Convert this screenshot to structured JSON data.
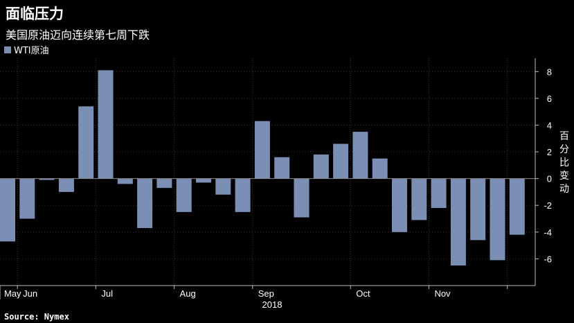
{
  "header": {
    "title": "面临压力",
    "subtitle": "美国原油迈向连续第七周下跌"
  },
  "footer": {
    "source": "Source: Nymex"
  },
  "chart_data": {
    "type": "bar",
    "series": [
      {
        "name": "WTI原油",
        "color": "#7b8fb5",
        "values": [
          -4.7,
          -3.0,
          -0.1,
          -1.0,
          5.4,
          8.1,
          -0.4,
          -3.7,
          -0.7,
          -2.5,
          -0.3,
          -1.2,
          -2.5,
          4.3,
          1.6,
          -2.9,
          1.8,
          2.6,
          3.5,
          1.5,
          -4.0,
          -3.1,
          -2.2,
          -6.5,
          -4.6,
          -6.1,
          -4.2
        ]
      }
    ],
    "ylabel": "百分比变动",
    "ylim": [
      -8,
      9
    ],
    "yticks": [
      8,
      6,
      4,
      2,
      0,
      -2,
      -4,
      -6
    ],
    "ytick_labels": [
      "8",
      "6",
      "4",
      "2",
      "0",
      "-2",
      "-4",
      "-6"
    ],
    "x_month_labels": [
      {
        "label": "May",
        "after_bar": 0
      },
      {
        "label": "Jun",
        "after_bar": 4
      },
      {
        "label": "Jul",
        "after_bar": 8
      },
      {
        "label": "Aug",
        "after_bar": 12
      },
      {
        "label": "Sep",
        "after_bar": 17
      },
      {
        "label": "Oct",
        "after_bar": 21
      },
      {
        "label": "Nov",
        "after_bar": 25
      }
    ],
    "x_year_label": "2018",
    "grid": true,
    "legend_position": "top-left",
    "axis_position": "right"
  }
}
